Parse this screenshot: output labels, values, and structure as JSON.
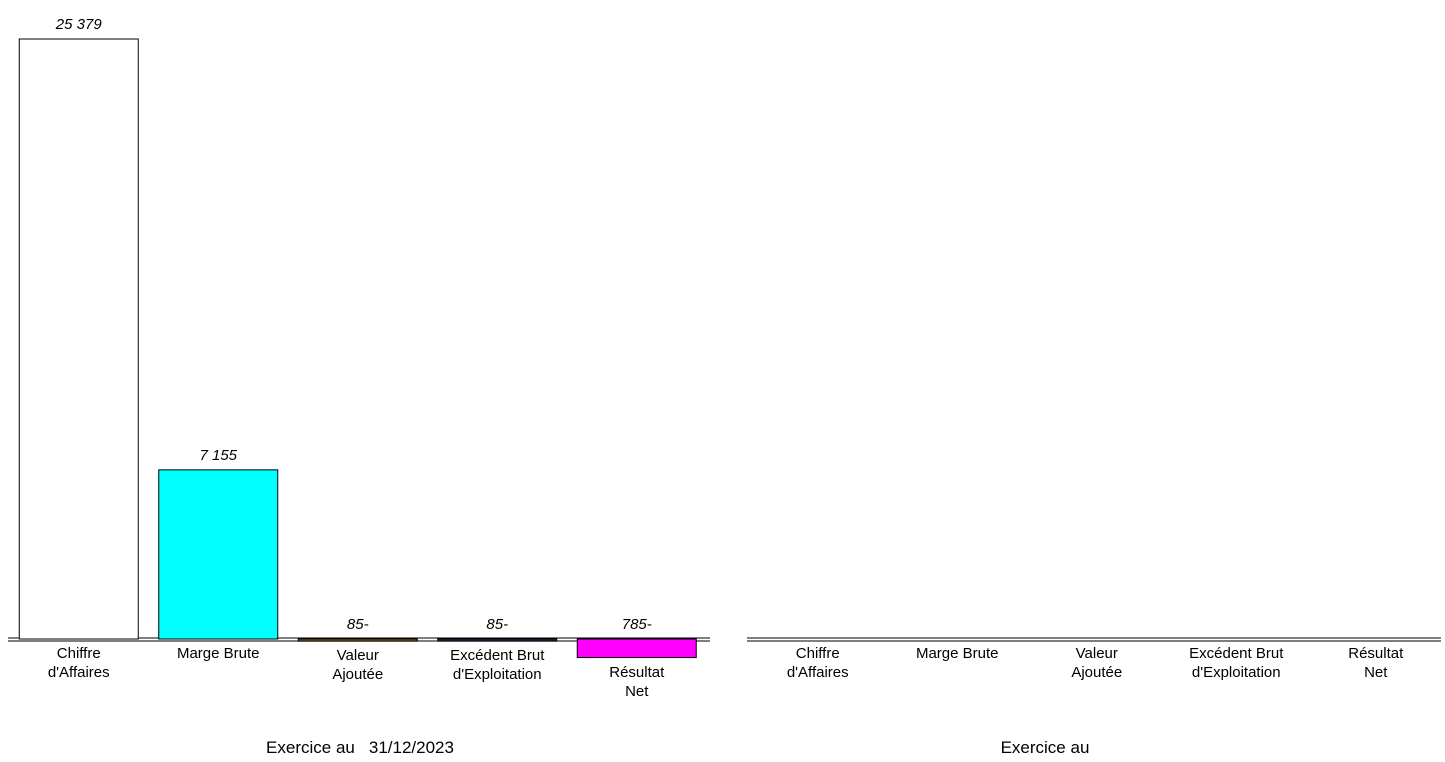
{
  "chart_data": [
    {
      "type": "bar",
      "title": "Exercice au",
      "date": "31/12/2023",
      "categories": [
        "Chiffre\nd'Affaires",
        "Marge Brute",
        "Valeur\nAjoutée",
        "Excédent Brut\nd'Exploitation",
        "Résultat\nNet"
      ],
      "values": [
        25379,
        7155,
        -85,
        -85,
        -785
      ],
      "value_labels": [
        "25 379",
        "7 155",
        "85-",
        "85-",
        "785-"
      ],
      "colors": [
        "#ffffff",
        "#00ffff",
        "#996633",
        "#1f3864",
        "#ff00ff"
      ]
    },
    {
      "type": "bar",
      "title": "Exercice au",
      "categories": [
        "Chiffre\nd'Affaires",
        "Marge Brute",
        "Valeur\nAjoutée",
        "Excédent Brut\nd'Exploitation",
        "Résultat\nNet"
      ],
      "values": [
        null,
        null,
        null,
        null,
        null
      ]
    }
  ]
}
